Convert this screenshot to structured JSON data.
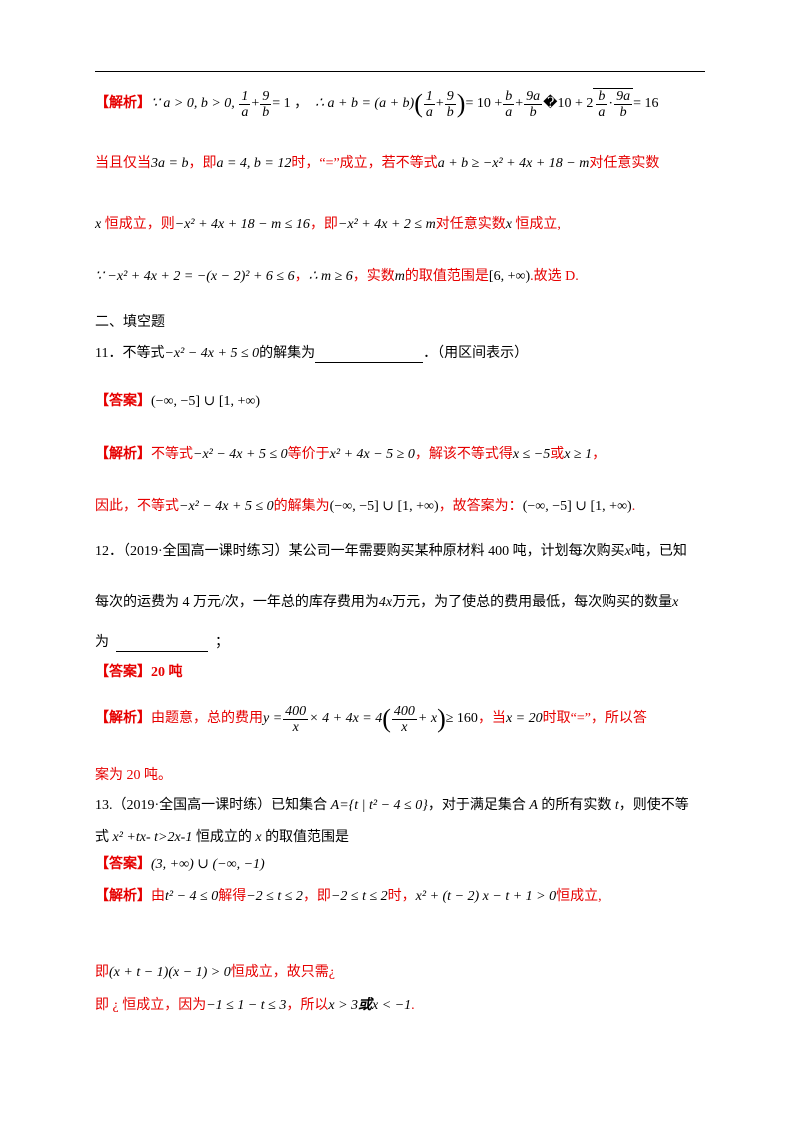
{
  "q10_analysis": {
    "label": "【解析】",
    "row1_math_a": "∵ a > 0, b > 0,",
    "row1_frac1": {
      "num": "1",
      "den": "a"
    },
    "row1_plus": "+",
    "row1_frac2": {
      "num": "9",
      "den": "b"
    },
    "row1_eq1": "= 1 ，",
    "row1_math_b": "∴ a + b = (a + b)",
    "row1_frac3": {
      "num": "1",
      "den": "a"
    },
    "row1_frac4": {
      "num": "9",
      "den": "b"
    },
    "row1_math_c": "= 10 +",
    "row1_frac5": {
      "num": "b",
      "den": "a"
    },
    "row1_frac6": {
      "num": "9a",
      "den": "b"
    },
    "row1_math_d": "�10 + 2",
    "row1_frac7": {
      "num": "b",
      "den": "a"
    },
    "row1_dot": "·",
    "row1_frac8": {
      "num": "9a",
      "den": "b"
    },
    "row1_math_e": "= 16",
    "row2_t1": "当且仅当",
    "row2_m1": "3a = b",
    "row2_t2": "，即",
    "row2_m2": "a = 4,  b = 12",
    "row2_t3": "时，“=”成立，若不等式",
    "row2_m3": "a + b ≥ −x² + 4x + 18 − m",
    "row2_t4": "对任意实数",
    "row3_m1": "x",
    "row3_t1": "恒成立，则",
    "row3_m2": "−x² + 4x + 18 − m ≤ 16",
    "row3_t2": "，即",
    "row3_m3": "−x² + 4x + 2 ≤ m",
    "row3_t3": "对任意实数",
    "row3_m4": "x",
    "row3_t4": "恒成立,",
    "row4_m1": "∵ −x² + 4x + 2 = −(x − 2)² + 6 ≤ 6",
    "row4_t1": "，",
    "row4_m2": "∴ m ≥ 6",
    "row4_t2": "，实数",
    "row4_m3": "m",
    "row4_t3": "的取值范围是",
    "row4_m4": "[6, +∞)",
    "row4_t4": ".故选 D."
  },
  "section2_title": "二、填空题",
  "q11": {
    "num": "11．不等式",
    "ineq": "−x² − 4x + 5 ≤ 0",
    "t1": "的解集为",
    "t2": "．（用区间表示）",
    "answer_label": "【答案】",
    "answer": "(−∞, −5] ∪ [1, +∞)",
    "analysis_label": "【解析】",
    "a1": "不等式",
    "a_m1": "−x² − 4x + 5 ≤ 0",
    "a2": "等价于",
    "a_m2": "x² + 4x − 5 ≥ 0",
    "a3": "，解该不等式得",
    "a_m3": "x ≤ −5",
    "a4": "或",
    "a_m4": "x ≥ 1",
    "a5": "，",
    "b1": "因此，不等式",
    "b_m1": "−x² − 4x + 5 ≤ 0",
    "b2": "的解集为",
    "b_m2": "(−∞, −5] ∪ [1, +∞)",
    "b3": "，故答案为：",
    "b_m3": "(−∞, −5] ∪ [1, +∞)",
    "b4": "."
  },
  "q12": {
    "line1": "12．（2019·全国高一课时练习）某公司一年需要购买某种原材料 400 吨，计划每次购买",
    "line1_m": "x",
    "line1_end": "吨，已知",
    "line2_a": "每次的运费为 4 万元/次，一年总的库存费用为",
    "line2_m": "4x",
    "line2_b": "万元，为了使总的费用最低，每次购买的数量",
    "line2_m2": "x",
    "line3_a": "为",
    "line3_b": "；",
    "answer_label": "【答案】",
    "answer": "20 吨",
    "analysis_label": "【解析】",
    "a1": "由题意，总的费用",
    "a_m1": "y =",
    "a_frac1": {
      "num": "400",
      "den": "x"
    },
    "a_m2": "× 4 + 4x = 4",
    "a_frac2": {
      "num": "400",
      "den": "x"
    },
    "a_m3": "+ x",
    "a_m4": "≥ 160",
    "a2": "，当",
    "a_m5": "x = 20",
    "a3": "时取“=”，所以答",
    "a4": "案为 20 吨。"
  },
  "q13": {
    "line1_a": "13.（2019·全国高一课时练）已知集合 ",
    "line1_A": "A",
    "line1_set": "={t | t² − 4 ≤ 0}",
    "line1_b": "，对于满足集合 ",
    "line1_A2": "A",
    "line1_c": " 的所有实数 ",
    "line1_t": "t",
    "line1_d": "，则使不等",
    "line2_a": "式 ",
    "line2_m": "x² +tx- t>2x-1",
    "line2_b": " 恒成立的 ",
    "line2_x": "x",
    "line2_c": " 的取值范围是",
    "answer_label": "【答案】",
    "answer": "(3, +∞) ∪ (−∞, −1)",
    "analysis_label": "【解析】",
    "a1": "由",
    "a_m1": "t² − 4 ≤ 0",
    "a2": "解得",
    "a_m2": "−2 ≤ t ≤ 2",
    "a3": "，即",
    "a_m3": "−2 ≤ t ≤ 2",
    "a4": "时，",
    "a_m4": "x² + (t − 2) x − t + 1 > 0",
    "a5": "恒成立,",
    "b1": "即",
    "b_m1": "(x + t − 1)(x − 1) > 0",
    "b2": "恒成立，故只需¿",
    "c1": "即 ¿ 恒成立，因为",
    "c_m1": "−1 ≤ 1 − t ≤ 3",
    "c2": "，所以",
    "c_m2": "x > 3",
    "c3": "或",
    "c_m3": "x < −1",
    "c4": "."
  }
}
